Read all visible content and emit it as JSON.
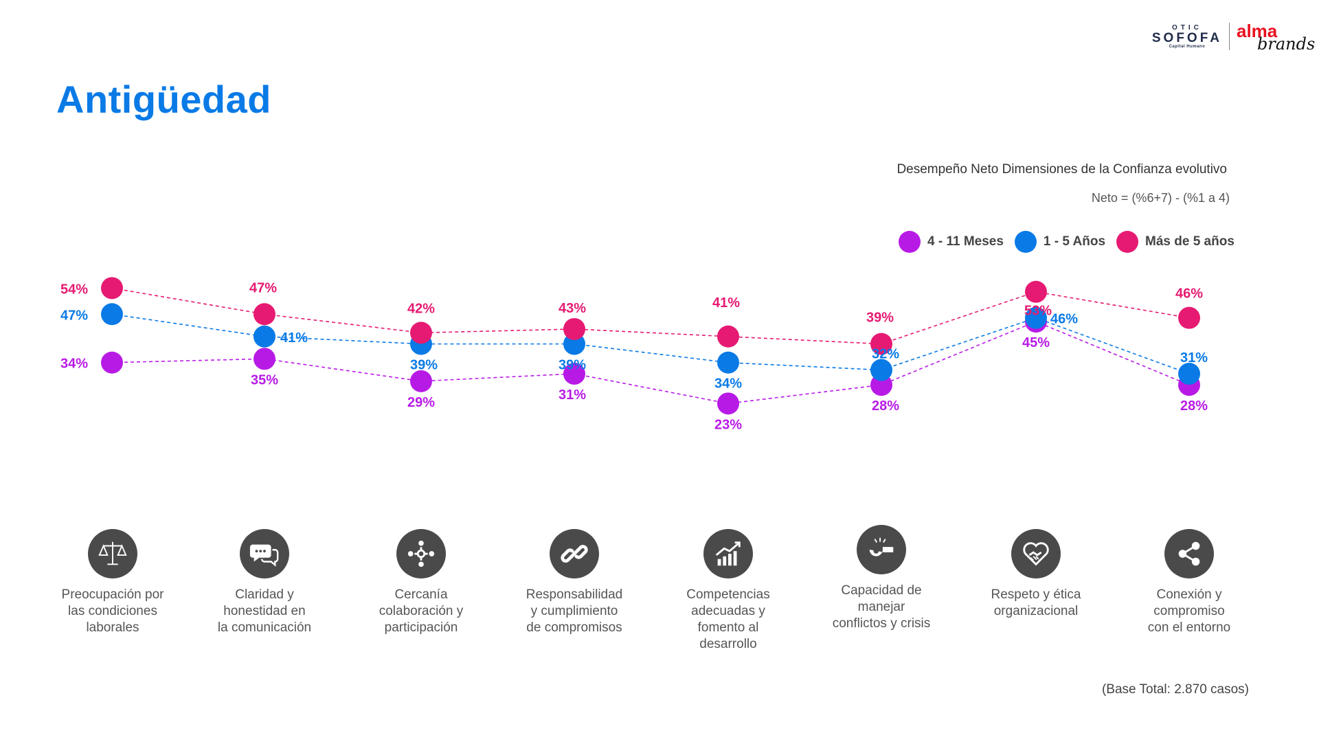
{
  "header": {
    "title": "Antigüedad",
    "logo_otic": "OTIC",
    "logo_sofofa": "SOFOFA",
    "logo_sofofa_sub": "Capital Humano",
    "logo_alma": "alma",
    "logo_brands": "brands"
  },
  "chart_header": {
    "subtitle": "Desempeño Neto Dimensiones de la Confianza evolutivo",
    "formula": "Neto = (%6+7) - (%1 a 4)"
  },
  "chart_data": {
    "type": "line",
    "categories": [
      "Preocupación por las condiciones laborales",
      "Claridad y honestidad en la comunicación",
      "Cercanía colaboración y participación",
      "Responsabilidad y cumplimiento de compromisos",
      "Competencias adecuadas y fomento al desarrollo",
      "Capacidad de manejar conflictos y crisis",
      "Respeto y ética organizacional",
      "Conexión y compromiso con el entorno"
    ],
    "series": [
      {
        "name": "4 - 11 Meses",
        "color": "#b81ae6",
        "values": [
          34,
          35,
          29,
          31,
          23,
          28,
          45,
          28
        ]
      },
      {
        "name": "1 - 5 Años",
        "color": "#0a7ae6",
        "values": [
          47,
          41,
          39,
          39,
          34,
          32,
          46,
          31
        ]
      },
      {
        "name": "Más de 5 años",
        "color": "#e61a72",
        "values": [
          54,
          47,
          42,
          43,
          41,
          39,
          53,
          46
        ]
      }
    ],
    "value_suffix": "%",
    "line_style": "dashed",
    "legend_position": "top-right",
    "grid": false
  },
  "categories_display": [
    {
      "lines": [
        "Preocupación por",
        "las condiciones",
        "laborales"
      ],
      "icon": "scales-icon"
    },
    {
      "lines": [
        "Claridad y",
        "honestidad en",
        "la comunicación"
      ],
      "icon": "chat-bubbles-icon"
    },
    {
      "lines": [
        "Cercanía",
        "colaboración y",
        "participación"
      ],
      "icon": "collaboration-icon"
    },
    {
      "lines": [
        "Responsabilidad",
        "y cumplimiento",
        "de compromisos"
      ],
      "icon": "chain-link-icon"
    },
    {
      "lines": [
        "Competencias",
        "adecuadas y",
        "fomento al",
        "desarrollo"
      ],
      "icon": "growth-chart-icon"
    },
    {
      "lines": [
        "Capacidad de",
        "manejar",
        "conflictos y crisis"
      ],
      "icon": "whistle-icon"
    },
    {
      "lines": [
        "Respeto y ética",
        "organizacional"
      ],
      "icon": "handshake-heart-icon"
    },
    {
      "lines": [
        "Conexión y",
        "compromiso",
        "con el entorno"
      ],
      "icon": "share-icon"
    }
  ],
  "footer": {
    "base_note": "(Base Total: 2.870 casos)"
  }
}
